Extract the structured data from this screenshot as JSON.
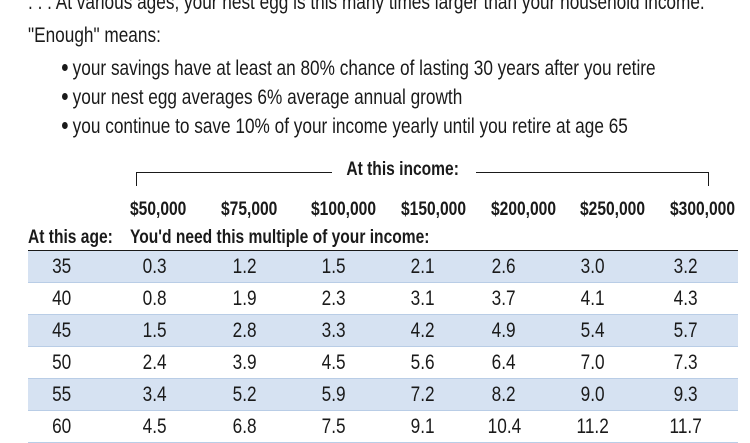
{
  "intro": ". . . At various ages, your nest egg is this many times larger than your household income.",
  "enough_label": "\"Enough\" means:",
  "bullets": [
    "your savings have at least an 80% chance of lasting 30 years after you retire",
    "your nest egg averages 6% average annual growth",
    "you continue to save 10% of your income yearly until you retire at age 65"
  ],
  "table": {
    "income_header": "At this income:",
    "age_header": "At this age:",
    "multiple_header": "You'd need this multiple of your income:",
    "incomes": [
      "$50,000",
      "$75,000",
      "$100,000",
      "$150,000",
      "$200,000",
      "$250,000",
      "$300,000"
    ],
    "rows": [
      {
        "age": "35",
        "values": [
          "0.3",
          "1.2",
          "1.5",
          "2.1",
          "2.6",
          "3.0",
          "3.2"
        ]
      },
      {
        "age": "40",
        "values": [
          "0.8",
          "1.9",
          "2.3",
          "3.1",
          "3.7",
          "4.1",
          "4.3"
        ]
      },
      {
        "age": "45",
        "values": [
          "1.5",
          "2.8",
          "3.3",
          "4.2",
          "4.9",
          "5.4",
          "5.7"
        ]
      },
      {
        "age": "50",
        "values": [
          "2.4",
          "3.9",
          "4.5",
          "5.6",
          "6.4",
          "7.0",
          "7.3"
        ]
      },
      {
        "age": "55",
        "values": [
          "3.4",
          "5.2",
          "5.9",
          "7.2",
          "8.2",
          "9.0",
          "9.3"
        ]
      },
      {
        "age": "60",
        "values": [
          "4.5",
          "6.8",
          "7.5",
          "9.1",
          "10.4",
          "11.2",
          "11.7"
        ]
      }
    ]
  },
  "colors": {
    "row_shade": "#d6e2f2",
    "text": "#1a1a1a"
  }
}
